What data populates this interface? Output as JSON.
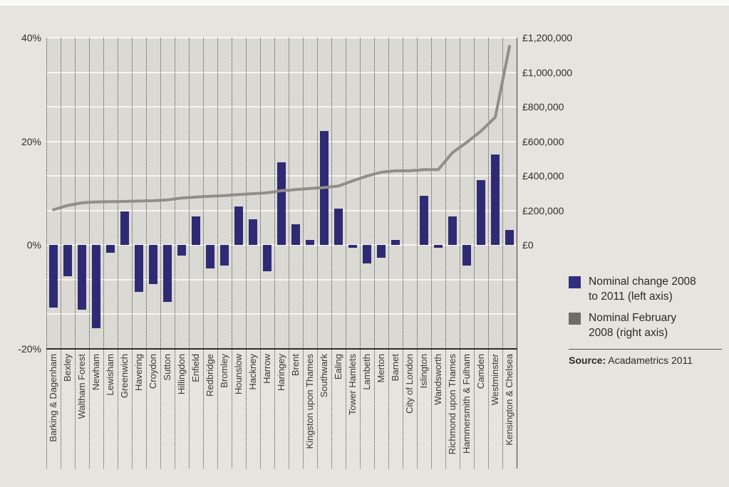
{
  "chart": {
    "left_axis": {
      "ticks": [
        {
          "label": "40%",
          "value": 40
        },
        {
          "label": "20%",
          "value": 20
        },
        {
          "label": "0%",
          "value": 0
        },
        {
          "label": "-20%",
          "value": -20
        }
      ]
    },
    "right_axis": {
      "ticks": [
        {
          "label": "£1,200,000",
          "value": 1200000
        },
        {
          "label": "£1,000,000",
          "value": 1000000
        },
        {
          "label": "£800,000",
          "value": 800000
        },
        {
          "label": "£600,000",
          "value": 600000
        },
        {
          "label": "£400,000",
          "value": 400000
        },
        {
          "label": "£200,000",
          "value": 200000
        },
        {
          "label": "£0",
          "value": 0
        }
      ]
    },
    "legend": [
      {
        "label": "Nominal change 2008 to 2011 (left axis)",
        "swatch_color": "#322e7e"
      },
      {
        "label": "Nominal February 2008 (right axis)",
        "swatch_color": "#6f6b68"
      }
    ],
    "source_label": "Source:",
    "source_text": " Acadametrics 2011"
  },
  "chart_data": {
    "type": "combo (bar + line)",
    "categories": [
      "Barking & Dagenham",
      "Bexley",
      "Waltham Forest",
      "Newham",
      "Lewisham",
      "Greenwich",
      "Havering",
      "Croydon",
      "Sutton",
      "Hillingdon",
      "Enfield",
      "Redbridge",
      "Bromley",
      "Hounslow",
      "Hackney",
      "Harrow",
      "Haringey",
      "Brent",
      "Kingston upon Thames",
      "Southwark",
      "Ealing",
      "Tower Hamlets",
      "Lambeth",
      "Merton",
      "Barnet",
      "City of London",
      "Islington",
      "Wandsworth",
      "Richmond upon Thames",
      "Hammersmith & Fulham",
      "Camden",
      "Westminster",
      "Kensington & Chelsea"
    ],
    "series": [
      {
        "name": "Nominal change 2008 to 2011 (left axis)",
        "type": "bar",
        "axis": "left",
        "unit": "percent",
        "values": [
          -12,
          -6,
          -12.5,
          -16,
          -1.5,
          6.5,
          -9,
          -7.5,
          -11,
          -2,
          5.5,
          -4.5,
          -4,
          7.5,
          5,
          -5,
          16,
          4,
          1,
          22,
          7,
          -0.5,
          -3.5,
          -2.5,
          1,
          0,
          9.5,
          -0.5,
          5.5,
          -4,
          12.5,
          17.5,
          3
        ]
      },
      {
        "name": "Nominal February 2008 (right axis)",
        "type": "line",
        "axis": "right",
        "unit": "GBP",
        "values": [
          205000,
          230000,
          245000,
          250000,
          252000,
          253000,
          255000,
          257000,
          262000,
          273000,
          278000,
          283000,
          287000,
          293000,
          298000,
          303000,
          315000,
          322000,
          328000,
          333000,
          342000,
          372000,
          400000,
          422000,
          430000,
          430000,
          437000,
          437000,
          535000,
          595000,
          660000,
          740000,
          1150000
        ]
      }
    ],
    "left_axis_range": [
      -20,
      40
    ],
    "right_axis_range": [
      0,
      1200000
    ],
    "gridlines": "white horizontal lines at every 200,000 of right axis, extended below zero; dotted vertical divider per category",
    "legend_position": "right"
  },
  "colors": {
    "bar": "#2e2b74",
    "line": "#918d88",
    "page_background": "#e7e4df",
    "plot_background": "#dbd9d4",
    "gridline": "#f6f5f2",
    "text": "#2f2d2a"
  }
}
